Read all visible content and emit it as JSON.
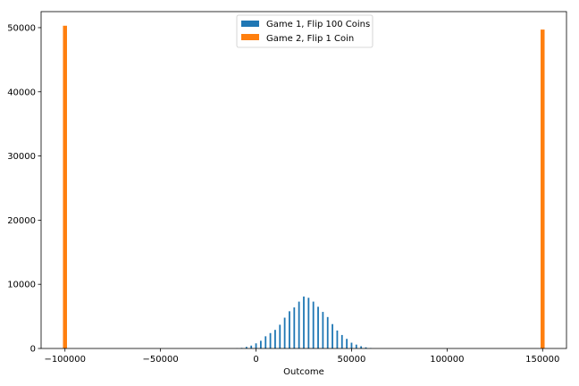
{
  "chart_data": {
    "type": "bar",
    "title": "",
    "xlabel": "Outcome",
    "ylabel": "",
    "xlim": [
      -112500,
      162500
    ],
    "ylim": [
      0,
      52500
    ],
    "xticks": [
      -100000,
      -50000,
      0,
      50000,
      100000,
      150000
    ],
    "xtick_labels": [
      "−100000",
      "−50000",
      "0",
      "50000",
      "100000",
      "150000"
    ],
    "yticks": [
      0,
      10000,
      20000,
      30000,
      40000,
      50000
    ],
    "ytick_labels": [
      "0",
      "10000",
      "20000",
      "30000",
      "40000",
      "50000"
    ],
    "grid": false,
    "legend_position": "upper center",
    "series": [
      {
        "name": "Game 1, Flip 100 Coins",
        "color": "#1f77b4",
        "x": [
          -10000,
          -7500,
          -5000,
          -2500,
          0,
          2500,
          5000,
          7500,
          10000,
          12500,
          15000,
          17500,
          20000,
          22500,
          25000,
          27500,
          30000,
          32500,
          35000,
          37500,
          40000,
          42500,
          45000,
          47500,
          50000,
          52500,
          55000,
          57500,
          60000
        ],
        "values": [
          30,
          90,
          250,
          450,
          800,
          1200,
          1900,
          2400,
          2900,
          3700,
          4800,
          5800,
          6400,
          7300,
          8100,
          7900,
          7300,
          6500,
          5700,
          4900,
          3800,
          2800,
          2100,
          1500,
          900,
          600,
          350,
          180,
          70
        ]
      },
      {
        "name": "Game 2, Flip 1 Coin",
        "color": "#ff7f0e",
        "x": [
          -100000,
          150000
        ],
        "values": [
          50300,
          49700
        ]
      }
    ]
  }
}
